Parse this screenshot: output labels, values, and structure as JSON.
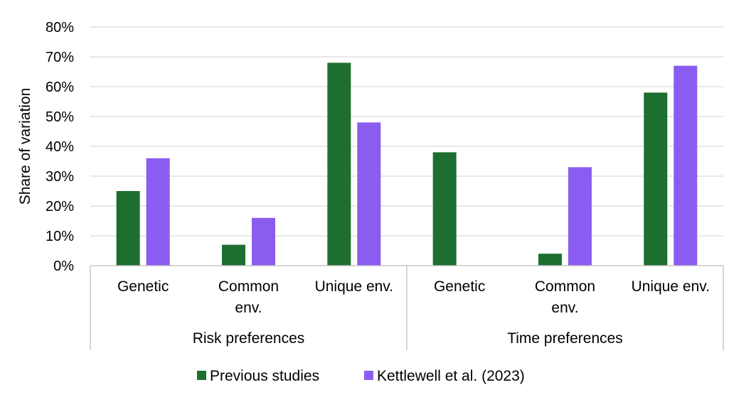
{
  "chart_data": {
    "type": "bar",
    "ylabel": "Share of variation",
    "ylim": [
      0,
      80
    ],
    "yticks": [
      "0%",
      "10%",
      "20%",
      "30%",
      "40%",
      "50%",
      "60%",
      "70%",
      "80%"
    ],
    "grid": true,
    "legend_position": "bottom",
    "groups": [
      {
        "label": "Risk preferences",
        "categories": [
          "Genetic",
          "Common env.",
          "Unique env."
        ]
      },
      {
        "label": "Time preferences",
        "categories": [
          "Genetic",
          "Common env.",
          "Unique env."
        ]
      }
    ],
    "series": [
      {
        "name": "Previous studies",
        "color": "#1e6e30",
        "values": [
          25,
          7,
          68,
          38,
          4,
          58
        ]
      },
      {
        "name": "Kettlewell et al. (2023)",
        "color": "#8b5cf0",
        "values": [
          36,
          16,
          48,
          null,
          33,
          67
        ]
      }
    ]
  }
}
